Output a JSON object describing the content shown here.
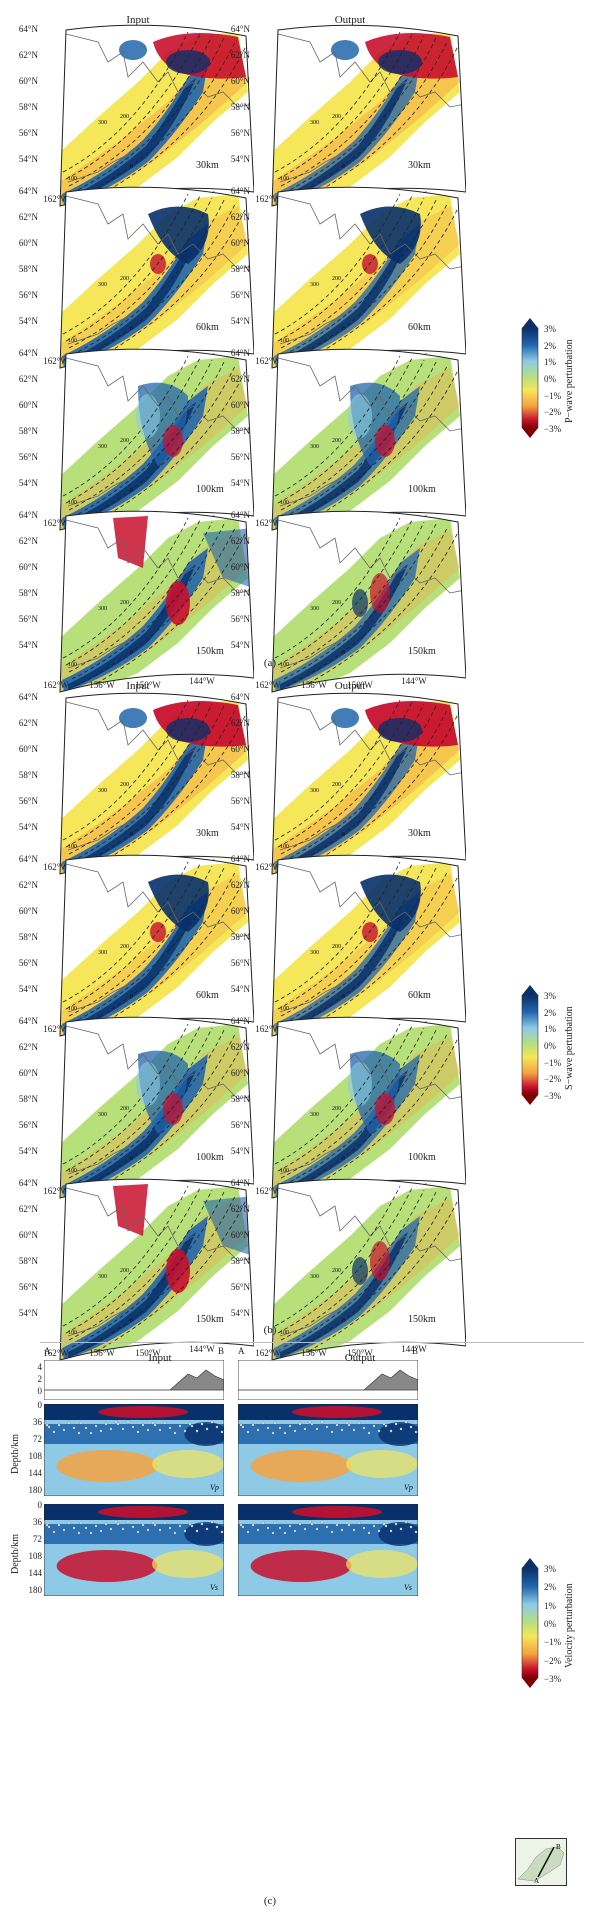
{
  "columns": [
    "Input",
    "Output"
  ],
  "lat_labels": [
    "64°N",
    "62°N",
    "60°N",
    "58°N",
    "56°N",
    "54°N"
  ],
  "lon_labels": [
    "162°W",
    "156°W",
    "150°W",
    "144°W"
  ],
  "depths": [
    "30km",
    "60km",
    "100km",
    "150km"
  ],
  "contour_labels": [
    "100",
    "200",
    "300",
    "0"
  ],
  "section_a": {
    "label": "(a)",
    "colorbar_title": "P−wave perturbation",
    "ticks": [
      "3%",
      "2%",
      "1%",
      "0%",
      "−1%",
      "−2%",
      "−3%"
    ]
  },
  "section_b": {
    "label": "(b)",
    "colorbar_title": "S−wave perturbation",
    "ticks": [
      "3%",
      "2%",
      "1%",
      "0%",
      "−1%",
      "−2%",
      "−3%"
    ]
  },
  "section_c": {
    "label": "(c)",
    "columns": [
      "Input",
      "Output"
    ],
    "point_a": "A",
    "point_b": "B",
    "topo_ticks": [
      "4",
      "2",
      "0"
    ],
    "depth_axis": "Depth/km",
    "depth_ticks": [
      "0",
      "36",
      "72",
      "108",
      "144",
      "180"
    ],
    "rows": [
      "Vp",
      "Vs"
    ],
    "colorbar_title": "Velocity perturbation",
    "ticks": [
      "3%",
      "2%",
      "1%",
      "0%",
      "−1%",
      "−2%",
      "−3%"
    ]
  },
  "colors": {
    "blue_dark": "#08306b",
    "blue": "#2166ac",
    "cyan": "#8ecae6",
    "green": "#b8e07a",
    "yellow": "#f6e65a",
    "orange": "#f4a340",
    "red": "#c8102e",
    "red_dark": "#7f0000"
  }
}
